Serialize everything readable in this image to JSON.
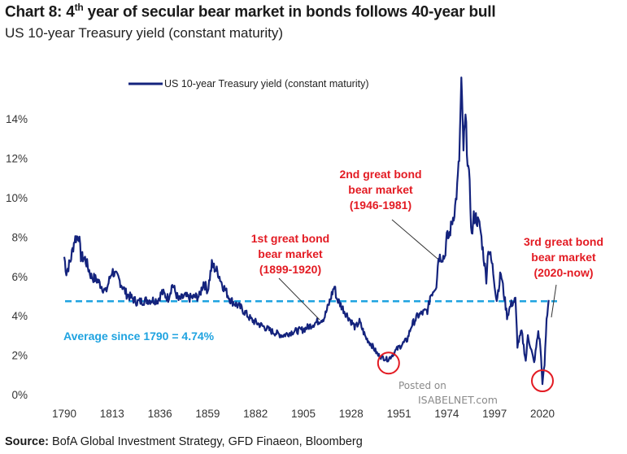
{
  "title": {
    "prefix": "Chart 8: 4",
    "sup": "th",
    "rest": " year of secular bear market in bonds follows 40-year bull"
  },
  "subtitle": "US 10-year Treasury yield (constant maturity)",
  "source": {
    "label": "Source:",
    "text": " BofA Global Investment Strategy, GFD Finaeon, Bloomberg"
  },
  "watermark": {
    "line1": "Posted on",
    "line2": "ISABELNET.com"
  },
  "colors": {
    "series": "#14237d",
    "average": "#1fa3e0",
    "annotation": "#e31b23"
  },
  "chart_data": {
    "type": "line",
    "title": "",
    "xlabel": "",
    "ylabel": "",
    "legend_position": "top-left",
    "grid": false,
    "xlim": [
      1790,
      2024
    ],
    "ylim": [
      0,
      16
    ],
    "x_ticks": [
      "1790",
      "1813",
      "1836",
      "1859",
      "1882",
      "1905",
      "1928",
      "1951",
      "1974",
      "1997",
      "2020"
    ],
    "y_ticks": [
      "0%",
      "2%",
      "4%",
      "6%",
      "8%",
      "10%",
      "12%",
      "14%"
    ],
    "series": [
      {
        "name": "US 10-year Treasury yield (constant maturity)",
        "x": [
          1790,
          1791,
          1793,
          1795,
          1797,
          1798,
          1800,
          1803,
          1806,
          1810,
          1813,
          1815,
          1816,
          1820,
          1825,
          1830,
          1835,
          1837,
          1840,
          1842,
          1845,
          1848,
          1850,
          1855,
          1857,
          1859,
          1861,
          1864,
          1866,
          1870,
          1875,
          1880,
          1885,
          1890,
          1895,
          1900,
          1905,
          1910,
          1915,
          1917,
          1919,
          1920,
          1921,
          1925,
          1930,
          1932,
          1935,
          1938,
          1941,
          1945,
          1946,
          1950,
          1955,
          1957,
          1960,
          1965,
          1966,
          1969,
          1970,
          1973,
          1974,
          1975,
          1978,
          1979,
          1980,
          1981,
          1982,
          1983,
          1984,
          1985,
          1986,
          1987,
          1988,
          1990,
          1993,
          1994,
          1996,
          1998,
          2000,
          2003,
          2005,
          2007,
          2008,
          2010,
          2012,
          2013,
          2015,
          2016,
          2018,
          2019,
          2020,
          2021,
          2022,
          2023
        ],
        "y": [
          7.0,
          6.2,
          6.8,
          7.9,
          8.1,
          7.0,
          6.9,
          6.0,
          5.8,
          5.2,
          6.3,
          6.0,
          5.9,
          5.1,
          4.7,
          4.8,
          4.8,
          5.2,
          4.9,
          5.6,
          4.8,
          5.0,
          4.9,
          5.0,
          5.7,
          5.3,
          6.6,
          6.2,
          5.6,
          4.8,
          4.4,
          3.8,
          3.5,
          3.2,
          3.0,
          3.2,
          3.3,
          3.6,
          3.9,
          4.5,
          5.2,
          5.5,
          4.9,
          4.2,
          3.4,
          3.7,
          2.9,
          2.5,
          2.0,
          1.8,
          1.8,
          2.3,
          2.8,
          3.5,
          4.0,
          4.3,
          5.0,
          5.6,
          7.0,
          7.0,
          8.0,
          8.0,
          9.5,
          10.5,
          12.0,
          15.8,
          12.5,
          14.0,
          12.0,
          10.5,
          8.0,
          9.0,
          9.0,
          8.5,
          5.9,
          7.5,
          6.5,
          4.8,
          6.2,
          4.0,
          4.6,
          4.8,
          2.5,
          3.2,
          1.7,
          3.0,
          2.1,
          1.6,
          3.2,
          2.5,
          0.6,
          1.5,
          3.8,
          4.8
        ]
      }
    ],
    "average": {
      "label": "Average since 1790 = 4.74%",
      "value": 4.74
    },
    "annotations": [
      {
        "lines": [
          "1st great bond",
          "bear market",
          "(1899-1920)"
        ],
        "x": 1920,
        "y": 4.2
      },
      {
        "lines": [
          "2nd great bond",
          "bear market",
          "(1946-1981)"
        ],
        "x": 1964,
        "y": 7.0
      },
      {
        "lines": [
          "3rd great bond",
          "bear market",
          "(2020-now)"
        ],
        "x": 2020,
        "y": 4.5
      }
    ],
    "circles": [
      {
        "x": 1946,
        "y": 1.6
      },
      {
        "x": 2020,
        "y": 0.7
      }
    ]
  }
}
